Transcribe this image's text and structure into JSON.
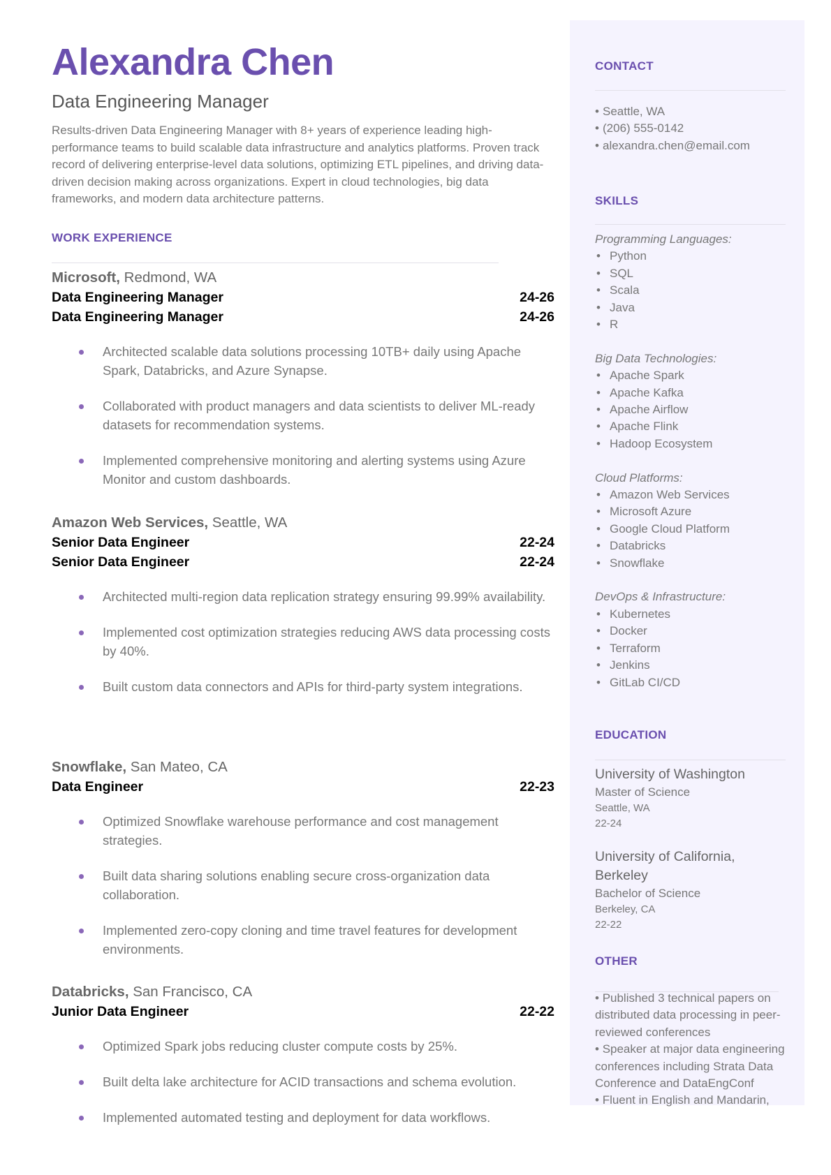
{
  "header": {
    "name": "Alexandra Chen",
    "title": "Data Engineering Manager",
    "summary": "Results-driven Data Engineering Manager with 8+ years of experience leading high-performance teams to build scalable data infrastructure and analytics platforms. Proven track record of delivering enterprise-level data solutions, optimizing ETL pipelines, and driving data-driven decision making across organizations. Expert in cloud technologies, big data frameworks, and modern data architecture patterns."
  },
  "work": {
    "heading": "WORK EXPERIENCE",
    "jobs": [
      {
        "company": "Microsoft,",
        "location": "Redmond, WA",
        "roles": [
          {
            "title": "Data Engineering Manager",
            "dates": "24-26"
          },
          {
            "title": "Data Engineering Manager",
            "dates": "24-26"
          }
        ],
        "bullets": [
          "Architected scalable data solutions processing 10TB+ daily using Apache Spark, Databricks, and Azure Synapse.",
          "Collaborated with product managers and data scientists to deliver ML-ready datasets for recommendation systems.",
          "Implemented comprehensive monitoring and alerting systems using Azure Monitor and custom dashboards."
        ]
      },
      {
        "company": "Amazon Web Services,",
        "location": "Seattle, WA",
        "roles": [
          {
            "title": "Senior Data Engineer",
            "dates": "22-24"
          },
          {
            "title": "Senior Data Engineer",
            "dates": "22-24"
          }
        ],
        "bullets": [
          "Architected multi-region data replication strategy ensuring 99.99% availability.",
          "Implemented cost optimization strategies reducing AWS data processing costs by 40%.",
          "Built custom data connectors and APIs for third-party system integrations."
        ]
      },
      {
        "company": "Snowflake,",
        "location": "San Mateo, CA",
        "roles": [
          {
            "title": "Data Engineer",
            "dates": "22-23"
          }
        ],
        "bullets": [
          "Optimized Snowflake warehouse performance and cost management strategies.",
          "Built data sharing solutions enabling secure cross-organization data collaboration.",
          "Implemented zero-copy cloning and time travel features for development environments."
        ]
      },
      {
        "company": "Databricks,",
        "location": "San Francisco, CA",
        "roles": [
          {
            "title": "Junior Data Engineer",
            "dates": "22-22"
          }
        ],
        "bullets": [
          "Optimized Spark jobs reducing cluster compute costs by 25%.",
          "Built delta lake architecture for ACID transactions and schema evolution.",
          "Implemented automated testing and deployment for data workflows."
        ]
      }
    ]
  },
  "contact": {
    "heading": "CONTACT",
    "items": [
      "Seattle, WA",
      "(206) 555-0142",
      "alexandra.chen@email.com"
    ]
  },
  "skills": {
    "heading": "SKILLS",
    "groups": [
      {
        "label": "Programming Languages:",
        "items": [
          "Python",
          "SQL",
          "Scala",
          "Java",
          "R"
        ]
      },
      {
        "label": "Big Data Technologies:",
        "items": [
          "Apache Spark",
          "Apache Kafka",
          "Apache Airflow",
          "Apache Flink",
          "Hadoop Ecosystem"
        ]
      },
      {
        "label": "Cloud Platforms:",
        "items": [
          "Amazon Web Services",
          "Microsoft Azure",
          "Google Cloud Platform",
          "Databricks",
          "Snowflake"
        ]
      },
      {
        "label": "DevOps & Infrastructure:",
        "items": [
          "Kubernetes",
          "Docker",
          "Terraform",
          "Jenkins",
          "GitLab CI/CD"
        ]
      }
    ]
  },
  "education": {
    "heading": "EDUCATION",
    "entries": [
      {
        "school": "University of Washington",
        "degree": "Master of Science",
        "location": "Seattle, WA",
        "dates": "22-24"
      },
      {
        "school": "University of California, Berkeley",
        "degree": "Bachelor of Science",
        "location": "Berkeley, CA",
        "dates": "22-22"
      }
    ]
  },
  "other": {
    "heading": "OTHER",
    "items": [
      "Published 3 technical papers on distributed data processing in peer-reviewed conferences",
      "Speaker at major data engineering conferences including Strata Data Conference and DataEngConf",
      "Fluent in English and Mandarin,"
    ]
  },
  "colors": {
    "accent": "#6a4fae",
    "sidebar_bg": "#f5f3fe",
    "bullet": "#8a67b8"
  }
}
